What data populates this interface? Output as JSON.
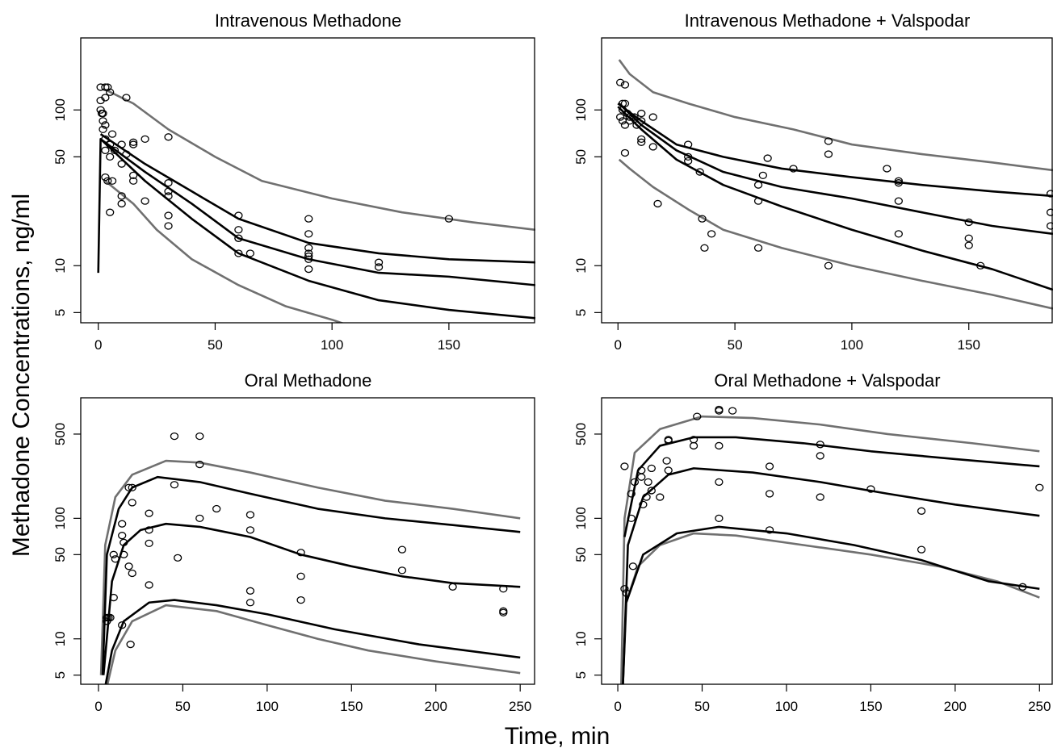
{
  "y_label": "Methadone Concentrations, ng/ml",
  "x_label": "Time, min",
  "chart_data": [
    {
      "type": "line",
      "title": "Intravenous Methadone",
      "log_y": true,
      "xlim": [
        -7.5,
        187
      ],
      "xticks": [
        0,
        50,
        100,
        150
      ],
      "ylim": [
        4.3,
        290
      ],
      "yticks": [
        5,
        10,
        50,
        100
      ],
      "series": [
        {
          "color": "#707070",
          "x": [
            3,
            15,
            30,
            50,
            70,
            100,
            130,
            160,
            187
          ],
          "values": [
            135,
            110,
            75,
            50,
            35,
            27,
            22,
            19,
            17
          ]
        },
        {
          "color": "#707070",
          "x": [
            3,
            15,
            25,
            40,
            60,
            80,
            100,
            110
          ],
          "values": [
            35,
            25,
            17,
            11,
            7.5,
            5.5,
            4.5,
            4.0
          ]
        },
        {
          "color": "#000000",
          "x": [
            1,
            20,
            40,
            60,
            90,
            120,
            150,
            187
          ],
          "values": [
            70,
            45,
            30,
            20,
            14,
            12,
            11,
            10.5
          ]
        },
        {
          "color": "#000000",
          "x": [
            0,
            1,
            20,
            40,
            60,
            90,
            120,
            150,
            187
          ],
          "values": [
            9,
            65,
            40,
            25,
            15,
            11,
            9,
            8.5,
            7.5
          ]
        },
        {
          "color": "#000000",
          "x": [
            1,
            20,
            40,
            60,
            90,
            120,
            150,
            187
          ],
          "values": [
            65,
            35,
            20,
            12,
            8,
            6,
            5.2,
            4.6
          ]
        },
        {
          "color": "#000000",
          "marker": "circle",
          "x": [
            1,
            1,
            1,
            1.5,
            2,
            2,
            2,
            3,
            3,
            3,
            3,
            3,
            3,
            4,
            4,
            5,
            5,
            5,
            5,
            6,
            6,
            7,
            10,
            10,
            10,
            10,
            12,
            12,
            15,
            15,
            15,
            15,
            20,
            20,
            30,
            30,
            30,
            30,
            30,
            30,
            60,
            60,
            60,
            60,
            60,
            65,
            90,
            90,
            90,
            90,
            90,
            90,
            90,
            120,
            120,
            150
          ],
          "values": [
            140,
            115,
            100,
            95,
            95,
            85,
            75,
            140,
            120,
            80,
            65,
            55,
            37,
            35,
            140,
            130,
            50,
            60,
            22,
            35,
            70,
            55,
            60,
            45,
            28,
            25,
            120,
            52,
            62,
            60,
            35,
            38,
            26,
            65,
            67,
            34,
            30,
            28,
            21,
            18,
            21,
            17,
            15,
            15,
            12,
            12,
            20,
            16,
            13,
            12,
            11.5,
            11,
            9.5,
            10.5,
            9.8,
            20
          ]
        }
      ]
    },
    {
      "type": "line",
      "title": "Intravenous Methadone + Valspodar",
      "log_y": true,
      "xlim": [
        -7,
        186
      ],
      "xticks": [
        0,
        50,
        100,
        150
      ],
      "ylim": [
        4.3,
        290
      ],
      "yticks": [
        5,
        10,
        50,
        100
      ],
      "series": [
        {
          "color": "#707070",
          "x": [
            0.5,
            5,
            15,
            30,
            50,
            75,
            100,
            130,
            160,
            186
          ],
          "values": [
            210,
            170,
            130,
            110,
            90,
            75,
            60,
            52,
            46,
            41
          ]
        },
        {
          "color": "#707070",
          "x": [
            0.5,
            5,
            15,
            30,
            45,
            70,
            100,
            130,
            160,
            186
          ],
          "values": [
            48,
            42,
            32,
            23,
            17,
            13,
            10,
            8,
            6.5,
            5.3
          ]
        },
        {
          "color": "#000000",
          "x": [
            0,
            10,
            25,
            45,
            70,
            100,
            130,
            160,
            186
          ],
          "values": [
            110,
            85,
            60,
            50,
            42,
            37,
            33,
            30,
            28
          ]
        },
        {
          "color": "#000000",
          "x": [
            0.5,
            10,
            25,
            45,
            70,
            100,
            130,
            160,
            186
          ],
          "values": [
            110,
            80,
            55,
            40,
            32,
            27,
            22,
            18,
            16
          ]
        },
        {
          "color": "#000000",
          "x": [
            0,
            10,
            25,
            45,
            70,
            100,
            130,
            160,
            186
          ],
          "values": [
            105,
            75,
            48,
            33,
            24,
            17,
            12.5,
            9.5,
            7
          ]
        },
        {
          "color": "#000000",
          "marker": "circle",
          "x": [
            1,
            1,
            2,
            2,
            2,
            3,
            3,
            3,
            3,
            4,
            5,
            5,
            7,
            8,
            10,
            10,
            10,
            10,
            15,
            15,
            17,
            30,
            30,
            30,
            35,
            36,
            37,
            40,
            62,
            60,
            60,
            60,
            64,
            75,
            90,
            90,
            90,
            115,
            120,
            120,
            120,
            120,
            150,
            150,
            150,
            155,
            185,
            185,
            185
          ],
          "values": [
            150,
            90,
            110,
            100,
            85,
            145,
            110,
            80,
            53,
            95,
            90,
            85,
            90,
            80,
            85,
            95,
            65,
            62,
            90,
            58,
            25,
            60,
            50,
            47,
            40,
            20,
            13,
            16,
            38,
            33,
            26,
            13,
            49,
            42,
            63,
            52,
            10,
            42,
            35,
            34,
            26,
            16,
            19,
            15,
            13.5,
            10,
            29,
            22,
            18
          ]
        }
      ]
    },
    {
      "type": "line",
      "title": "Oral Methadone",
      "log_y": true,
      "xlim": [
        -10.5,
        259
      ],
      "xticks": [
        0,
        50,
        100,
        150,
        200,
        250
      ],
      "ylim": [
        4.2,
        1000
      ],
      "yticks": [
        5,
        10,
        50,
        100,
        500
      ],
      "series": [
        {
          "color": "#707070",
          "x": [
            1.5,
            4,
            10,
            20,
            40,
            60,
            90,
            130,
            170,
            210,
            250
          ],
          "values": [
            5,
            60,
            150,
            230,
            300,
            290,
            240,
            180,
            140,
            120,
            100
          ]
        },
        {
          "color": "#707070",
          "x": [
            5,
            10,
            20,
            40,
            70,
            100,
            130,
            160,
            200,
            250
          ],
          "values": [
            4,
            8,
            14,
            19,
            17,
            13,
            10,
            8,
            6.5,
            5.2
          ]
        },
        {
          "color": "#000000",
          "x": [
            2.5,
            5,
            12,
            20,
            35,
            60,
            90,
            130,
            170,
            210,
            250
          ],
          "values": [
            5,
            50,
            120,
            180,
            220,
            200,
            160,
            120,
            100,
            88,
            77
          ]
        },
        {
          "color": "#000000",
          "x": [
            3,
            8,
            15,
            25,
            40,
            60,
            90,
            120,
            150,
            180,
            210,
            250
          ],
          "values": [
            5,
            30,
            60,
            80,
            90,
            85,
            70,
            50,
            40,
            33,
            29,
            27
          ]
        },
        {
          "color": "#000000",
          "x": [
            4,
            8,
            15,
            30,
            45,
            70,
            100,
            140,
            190,
            250
          ],
          "values": [
            4,
            8,
            14,
            20,
            21,
            19,
            16,
            12,
            9,
            7
          ]
        },
        {
          "color": "#000000",
          "marker": "circle",
          "x": [
            5,
            5,
            6,
            7,
            9,
            9,
            10,
            14,
            14,
            14,
            15,
            15,
            18,
            18,
            19,
            20,
            20,
            20,
            30,
            30,
            30,
            30,
            45,
            45,
            47,
            60,
            60,
            60,
            70,
            90,
            90,
            90,
            90,
            120,
            120,
            120,
            180,
            180,
            210,
            240,
            240,
            240
          ],
          "values": [
            15,
            14,
            15,
            15,
            50,
            22,
            46,
            13,
            72,
            90,
            50,
            63,
            40,
            180,
            9,
            180,
            35,
            135,
            110,
            80,
            28,
            62,
            480,
            190,
            47,
            480,
            280,
            100,
            120,
            107,
            80,
            25,
            20,
            52,
            33,
            21,
            55,
            37,
            27,
            17,
            16.5,
            26
          ]
        }
      ]
    },
    {
      "type": "line",
      "title": "Oral Methadone + Valspodar",
      "log_y": true,
      "xlim": [
        -9.6,
        258
      ],
      "xticks": [
        0,
        50,
        100,
        150,
        200,
        250
      ],
      "ylim": [
        4.2,
        1000
      ],
      "yticks": [
        5,
        10,
        50,
        100,
        500
      ],
      "series": [
        {
          "color": "#707070",
          "x": [
            2,
            4,
            10,
            25,
            50,
            80,
            120,
            160,
            210,
            250
          ],
          "values": [
            4,
            100,
            350,
            550,
            700,
            680,
            600,
            500,
            420,
            360
          ]
        },
        {
          "color": "#707070",
          "x": [
            5,
            12,
            25,
            45,
            70,
            110,
            150,
            190,
            225,
            250
          ],
          "values": [
            20,
            40,
            60,
            75,
            72,
            60,
            50,
            40,
            30,
            22
          ]
        },
        {
          "color": "#000000",
          "x": [
            4,
            12,
            25,
            45,
            70,
            110,
            150,
            200,
            250
          ],
          "values": [
            70,
            250,
            400,
            470,
            470,
            420,
            360,
            310,
            270
          ]
        },
        {
          "color": "#000000",
          "x": [
            3,
            6,
            15,
            30,
            45,
            80,
            120,
            160,
            200,
            250
          ],
          "values": [
            4,
            60,
            150,
            230,
            260,
            240,
            200,
            160,
            130,
            105
          ]
        },
        {
          "color": "#000000",
          "x": [
            3,
            5,
            15,
            35,
            60,
            100,
            140,
            180,
            220,
            250
          ],
          "values": [
            4,
            20,
            50,
            75,
            85,
            75,
            60,
            45,
            30,
            26
          ]
        },
        {
          "color": "#000000",
          "marker": "circle",
          "x": [
            4,
            4,
            5,
            8,
            8,
            9,
            10,
            14,
            14,
            15,
            17,
            18,
            20,
            20,
            25,
            29,
            30,
            30,
            30,
            45,
            45,
            47,
            60,
            60,
            60,
            60,
            60,
            68,
            90,
            90,
            90,
            120,
            120,
            120,
            150,
            180,
            180,
            240,
            250
          ],
          "values": [
            270,
            26,
            24,
            100,
            160,
            40,
            200,
            220,
            250,
            130,
            150,
            200,
            170,
            260,
            150,
            300,
            440,
            450,
            250,
            450,
            400,
            700,
            800,
            780,
            400,
            200,
            100,
            780,
            270,
            160,
            80,
            410,
            330,
            150,
            175,
            115,
            55,
            27,
            180
          ]
        }
      ]
    }
  ]
}
